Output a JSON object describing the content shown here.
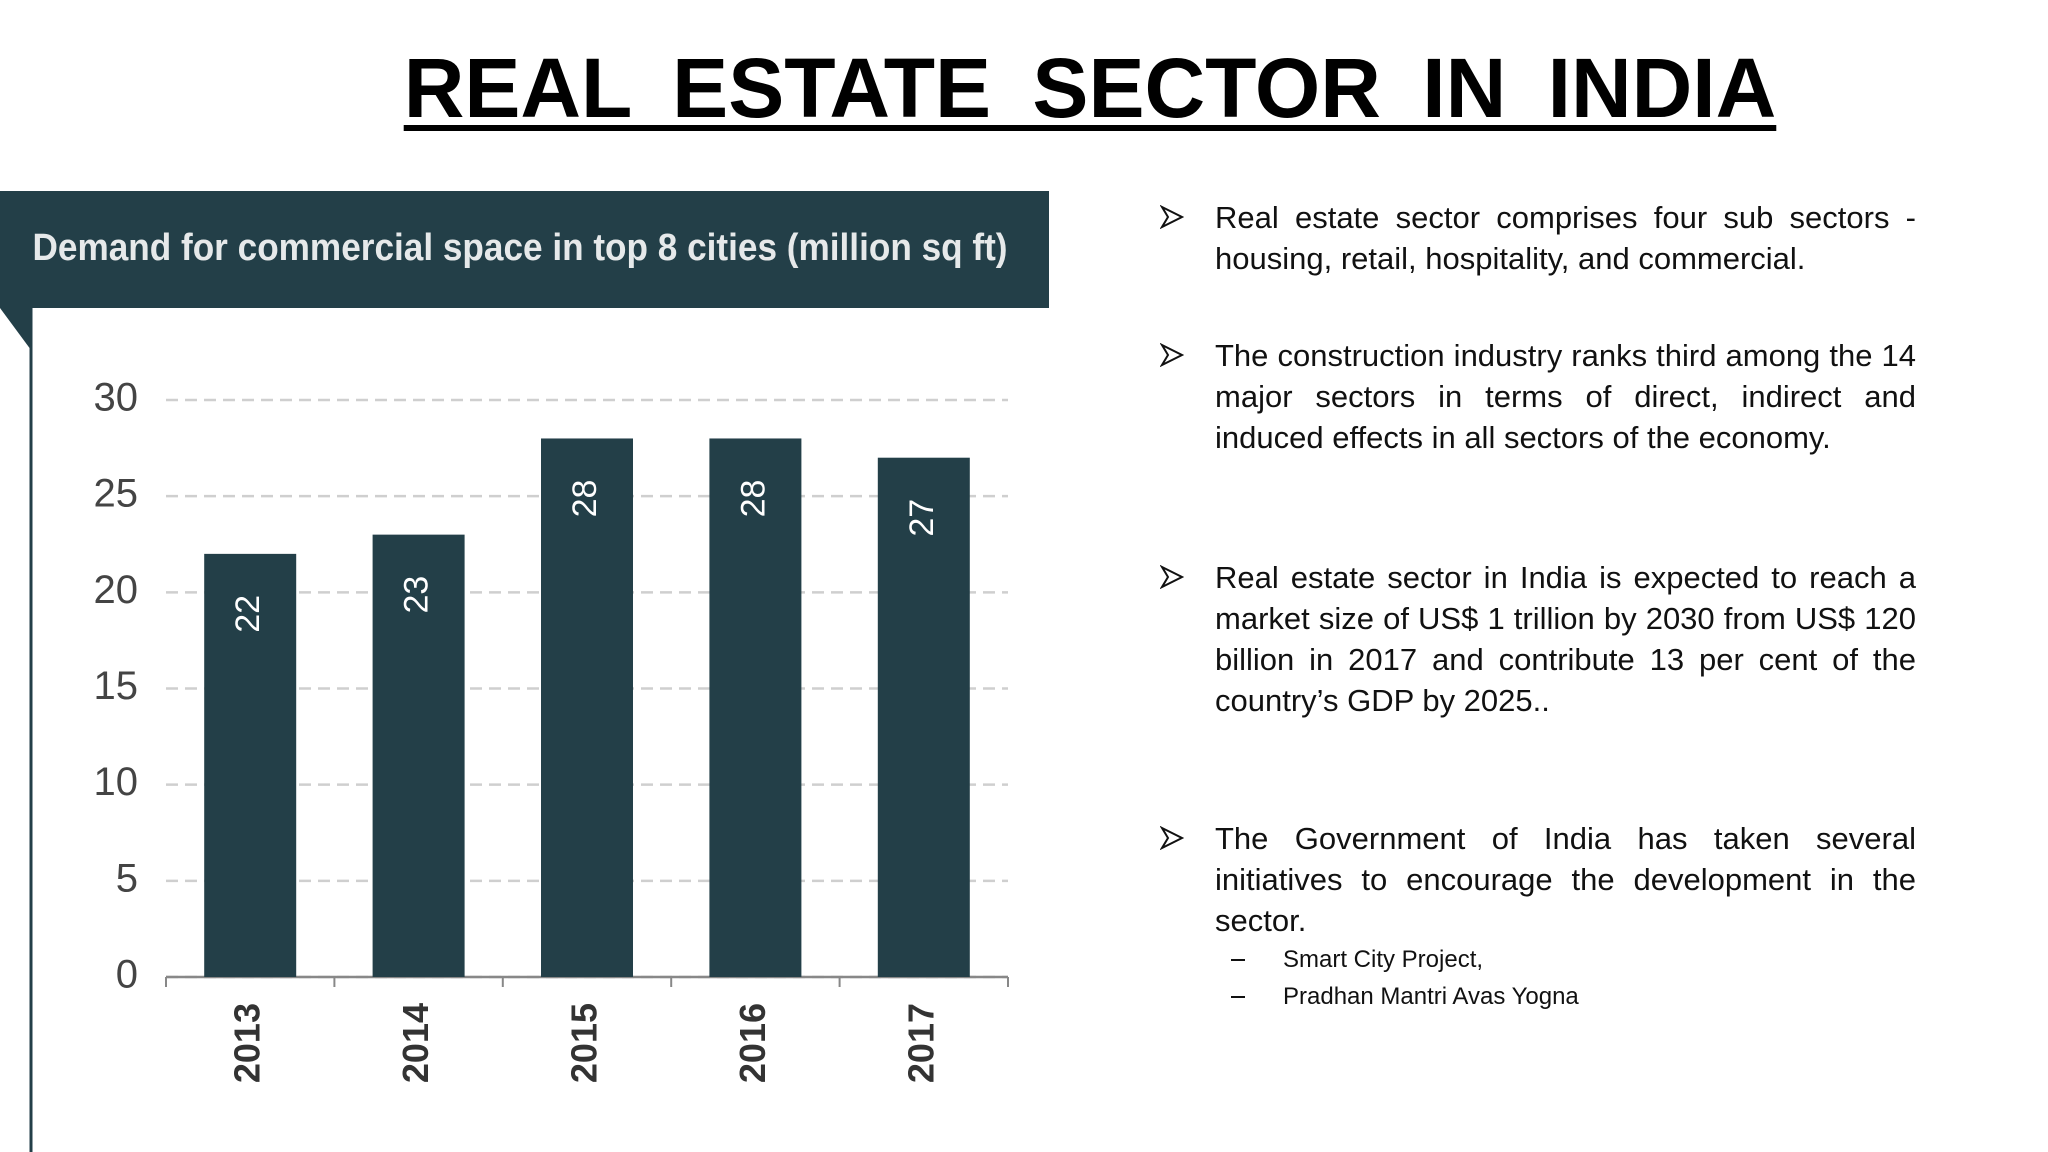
{
  "slide_title": "REAL ESTATE SECTOR IN INDIA",
  "chart_data": {
    "type": "bar",
    "title": "Demand for commercial space in top 8 cities (million sq ft)",
    "categories": [
      "2013",
      "2014",
      "2015",
      "2016",
      "2017"
    ],
    "values": [
      22,
      23,
      28,
      28,
      27
    ],
    "color": "#233f48",
    "ylim": [
      0,
      30
    ],
    "yticks": [
      0,
      5,
      10,
      15,
      20,
      25,
      30
    ],
    "grid": true
  },
  "bullets": [
    {
      "text": "Real estate sector comprises four sub sectors - housing, retail, hospitality, and commercial."
    },
    {
      "text": "The construction industry ranks third among the 14 major sectors in terms of direct, indirect and induced effects in all sectors of the economy."
    },
    {
      "text": "Real estate sector in India is expected to reach a market size of US$ 1 trillion by 2030 from US$ 120 billion in 2017 and contribute 13 per cent of the country’s GDP by 2025.."
    },
    {
      "text": "The Government of India has taken several initiatives to encourage the development in the sector.",
      "subitems": [
        "Smart City Project,",
        "Pradhan Mantri Avas Yogna"
      ]
    }
  ]
}
